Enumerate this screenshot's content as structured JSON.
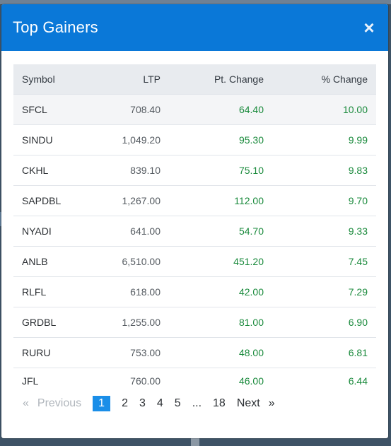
{
  "modal": {
    "title": "Top Gainers",
    "close_icon": "×"
  },
  "colors": {
    "header_bg": "#0a78d8",
    "positive": "#1a8a3c",
    "active_page": "#1a8ee8"
  },
  "table": {
    "headers": {
      "symbol": "Symbol",
      "ltp": "LTP",
      "pt_change": "Pt. Change",
      "pct_change": "% Change"
    },
    "rows": [
      {
        "symbol": "SFCL",
        "ltp": "708.40",
        "pt": "64.40",
        "pct": "10.00"
      },
      {
        "symbol": "SINDU",
        "ltp": "1,049.20",
        "pt": "95.30",
        "pct": "9.99"
      },
      {
        "symbol": "CKHL",
        "ltp": "839.10",
        "pt": "75.10",
        "pct": "9.83"
      },
      {
        "symbol": "SAPDBL",
        "ltp": "1,267.00",
        "pt": "112.00",
        "pct": "9.70"
      },
      {
        "symbol": "NYADI",
        "ltp": "641.00",
        "pt": "54.70",
        "pct": "9.33"
      },
      {
        "symbol": "ANLB",
        "ltp": "6,510.00",
        "pt": "451.20",
        "pct": "7.45"
      },
      {
        "symbol": "RLFL",
        "ltp": "618.00",
        "pt": "42.00",
        "pct": "7.29"
      },
      {
        "symbol": "GRDBL",
        "ltp": "1,255.00",
        "pt": "81.00",
        "pct": "6.90"
      },
      {
        "symbol": "RURU",
        "ltp": "753.00",
        "pt": "48.00",
        "pct": "6.81"
      },
      {
        "symbol": "JFL",
        "ltp": "760.00",
        "pt": "46.00",
        "pct": "6.44"
      }
    ]
  },
  "pagination": {
    "prev_arrow": "«",
    "previous": "Previous",
    "pages": [
      "1",
      "2",
      "3",
      "4",
      "5",
      "...",
      "18"
    ],
    "next": "Next",
    "next_arrow": "»"
  }
}
